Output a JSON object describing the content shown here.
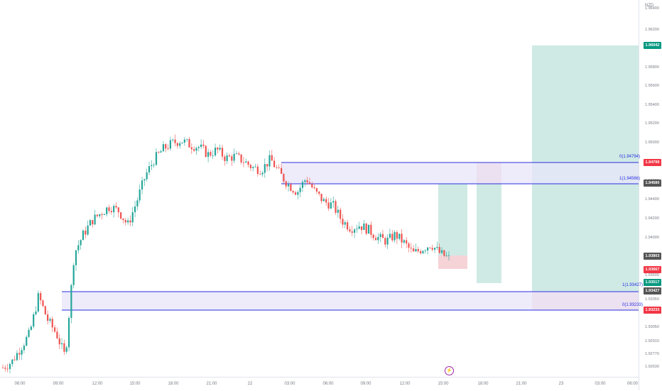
{
  "currency": "NZD",
  "price_ticks": [
    "1.96400",
    "1.96200",
    "1.96000",
    "1.95800",
    "1.95600",
    "1.95400",
    "1.95200",
    "1.95000",
    "1.94800",
    "1.94600",
    "1.94400",
    "1.94200",
    "1.94000",
    "1.93800",
    "1.93600",
    "1.93350",
    "1.93200",
    "1.93050",
    "1.92910",
    "1.92770",
    "1.92630"
  ],
  "price_badges": [
    {
      "text": "1.96042",
      "color": "#089981"
    },
    {
      "text": "1.94799",
      "color": "#f23645"
    },
    {
      "text": "1.94580",
      "color": "#555555"
    },
    {
      "text": "1.93803",
      "color": "#555555"
    },
    {
      "text": "1.93667",
      "color": "#f23645"
    },
    {
      "text": "1.93517",
      "color": "#089981"
    },
    {
      "text": "1.93427",
      "color": "#555555"
    },
    {
      "text": "1.93233",
      "color": "#f23645"
    }
  ],
  "time_labels": [
    "06:00",
    "09:00",
    "12:00",
    "15:00",
    "18:00",
    "21:00",
    "22",
    "03:00",
    "06:00",
    "09:00",
    "12:00",
    "15:00",
    "18:00",
    "21:00",
    "23",
    "03:00",
    "06:00"
  ],
  "fib_labels": {
    "upper_top": "0(1.94794)",
    "upper_bottom": "1(1.94566)",
    "lower_top": "1(1.93427)",
    "lower_bottom": "0(1.93233)"
  },
  "colors": {
    "up": "#26a69a",
    "down": "#ef5350",
    "zone_fill": "#e8e6fa",
    "zone_line": "#2a2ee0",
    "profit": "#cfeae5",
    "loss": "#f5d3d7"
  },
  "icons": {
    "flash": "lightning-icon"
  },
  "chart_data": {
    "type": "candlestick",
    "symbol_quote": "NZD",
    "ylim": [
      1.9255,
      1.965
    ],
    "price_path": [
      1.9264,
      1.927,
      1.9285,
      1.93,
      1.934,
      1.9315,
      1.93,
      1.9275,
      1.9385,
      1.9405,
      1.942,
      1.9428,
      1.9435,
      1.943,
      1.9415,
      1.944,
      1.9468,
      1.9485,
      1.9496,
      1.9502,
      1.9505,
      1.95,
      1.9498,
      1.949,
      1.9495,
      1.9486,
      1.9488,
      1.9483,
      1.9476,
      1.9474,
      1.9485,
      1.947,
      1.9458,
      1.945,
      1.9465,
      1.945,
      1.944,
      1.9436,
      1.942,
      1.9412,
      1.9415,
      1.941,
      1.9402,
      1.9398,
      1.9405,
      1.9396,
      1.9385,
      1.939,
      1.9395,
      1.9385,
      1.938
    ],
    "zones": [
      {
        "label": "upper",
        "top": 1.94794,
        "bottom": 1.94566
      },
      {
        "label": "lower",
        "top": 1.93427,
        "bottom": 1.93233
      }
    ]
  }
}
